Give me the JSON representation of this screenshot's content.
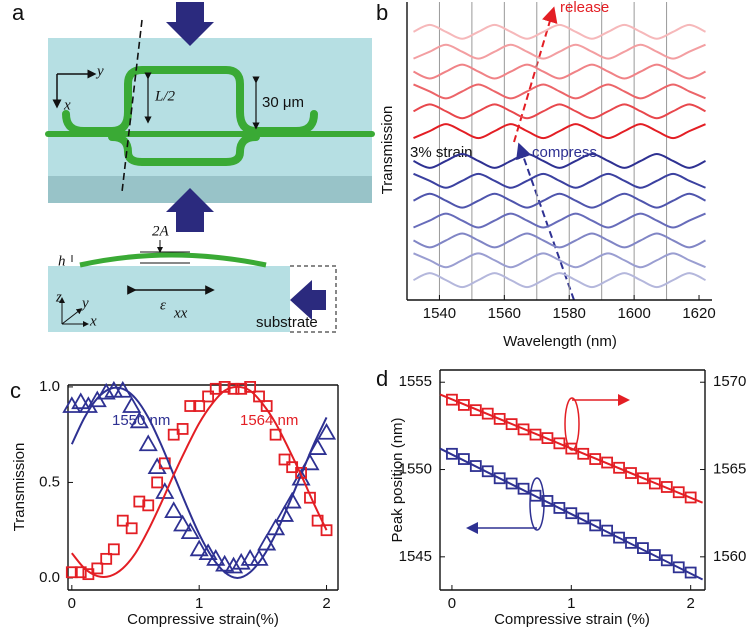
{
  "panel_labels": [
    "a",
    "b",
    "c",
    "d"
  ],
  "diagram": {
    "texts": [
      "y",
      "x",
      "L/2",
      "30 μm",
      "2A",
      "h",
      "ε",
      "xx",
      "z",
      "y",
      "x",
      "substrate"
    ]
  },
  "chart_data": [
    {
      "type": "line",
      "xlabel": "Wavelength (nm)",
      "ylabel": "Transmission",
      "xlim": [
        1530,
        1624
      ],
      "ylim": [
        0,
        15
      ],
      "xticks": [
        1540,
        1560,
        1580,
        1600,
        1620
      ],
      "xgrid": [
        1540,
        1550,
        1560,
        1570,
        1580,
        1590,
        1600,
        1610
      ],
      "annotations": [
        {
          "text": "release",
          "color": "#e31e24"
        },
        {
          "text": "compress",
          "color": "#2e3192"
        },
        {
          "text": "3% strain",
          "color": "#111111"
        }
      ],
      "x": [
        1532,
        1537,
        1542,
        1547,
        1552,
        1557,
        1562,
        1567,
        1572,
        1577,
        1582,
        1587,
        1592,
        1597,
        1602,
        1607,
        1612,
        1617,
        1622
      ],
      "series": [
        {
          "color": "#b4b7dc",
          "values": [
            1,
            1.35,
            1,
            0.65,
            1,
            1.35,
            1,
            0.65,
            1,
            1.35,
            1,
            0.65,
            1,
            1.35,
            1,
            0.65,
            1,
            1.35,
            1
          ]
        },
        {
          "color": "#9a9ed1",
          "values": [
            2.35,
            2,
            1.65,
            2,
            2.35,
            2,
            1.65,
            2,
            2.35,
            2,
            1.65,
            2,
            2.35,
            2,
            1.65,
            2,
            2.35,
            2,
            1.65
          ]
        },
        {
          "color": "#8085c5",
          "values": [
            3,
            2.65,
            3,
            3.35,
            3,
            2.65,
            3,
            3.35,
            3,
            2.65,
            3,
            3.35,
            3,
            2.65,
            3,
            3.35,
            3,
            2.65,
            3
          ]
        },
        {
          "color": "#676cba",
          "values": [
            3.65,
            4,
            4.35,
            4,
            3.65,
            4,
            4.35,
            4,
            3.65,
            4,
            4.35,
            4,
            3.65,
            4,
            4.35,
            4,
            3.65,
            4,
            4.35
          ]
        },
        {
          "color": "#4f55ad",
          "values": [
            5,
            5.35,
            5,
            4.65,
            5,
            5.35,
            5,
            4.65,
            5,
            5.35,
            5,
            4.65,
            5,
            5.35,
            5,
            4.65,
            5,
            5.35,
            5
          ]
        },
        {
          "color": "#3b41a0",
          "values": [
            6.35,
            6,
            5.65,
            6,
            6.35,
            6,
            5.65,
            6,
            6.35,
            6,
            5.65,
            6,
            6.35,
            6,
            5.65,
            6,
            6.35,
            6,
            5.65
          ]
        },
        {
          "color": "#2e3192",
          "values": [
            7,
            6.65,
            7,
            7.35,
            7,
            6.65,
            7,
            7.35,
            7,
            6.65,
            7,
            7.35,
            7,
            6.65,
            7,
            7.35,
            7,
            6.65,
            7
          ]
        },
        {
          "color": "#e31e24",
          "values": [
            8.15,
            8.5,
            8.85,
            8.5,
            8.15,
            8.5,
            8.85,
            8.5,
            8.15,
            8.5,
            8.85,
            8.5,
            8.15,
            8.5,
            8.85,
            8.5,
            8.15,
            8.5,
            8.85
          ]
        },
        {
          "color": "#e8474c",
          "values": [
            9.5,
            9.85,
            9.5,
            9.15,
            9.5,
            9.85,
            9.5,
            9.15,
            9.5,
            9.85,
            9.5,
            9.15,
            9.5,
            9.85,
            9.5,
            9.15,
            9.5,
            9.85,
            9.5
          ]
        },
        {
          "color": "#ec6569",
          "values": [
            10.85,
            10.5,
            10.15,
            10.5,
            10.85,
            10.5,
            10.15,
            10.5,
            10.85,
            10.5,
            10.15,
            10.5,
            10.85,
            10.5,
            10.15,
            10.5,
            10.85,
            10.5,
            10.15
          ]
        },
        {
          "color": "#f08286",
          "values": [
            11.5,
            11.15,
            11.5,
            11.85,
            11.5,
            11.15,
            11.5,
            11.85,
            11.5,
            11.15,
            11.5,
            11.85,
            11.5,
            11.15,
            11.5,
            11.85,
            11.5,
            11.15,
            11.5
          ]
        },
        {
          "color": "#f39ea1",
          "values": [
            12.15,
            12.5,
            12.85,
            12.5,
            12.15,
            12.5,
            12.85,
            12.5,
            12.15,
            12.5,
            12.85,
            12.5,
            12.15,
            12.5,
            12.85,
            12.5,
            12.15,
            12.5,
            12.85
          ]
        },
        {
          "color": "#f6b8ba",
          "values": [
            13.5,
            13.85,
            13.5,
            13.15,
            13.5,
            13.85,
            13.5,
            13.15,
            13.5,
            13.85,
            13.5,
            13.15,
            13.5,
            13.85,
            13.5,
            13.15,
            13.5,
            13.85,
            13.5
          ]
        }
      ]
    },
    {
      "type": "scatter",
      "xlabel": "Compressive strain(%)",
      "ylabel": "Transmission",
      "xlim": [
        -0.03,
        2.09
      ],
      "ylim": [
        -0.063,
        1.01
      ],
      "xticks": [
        0,
        1,
        2
      ],
      "yticks": [
        {
          "value": 0,
          "label": "0.0"
        },
        0.5,
        {
          "value": 1,
          "label": "1.0"
        }
      ],
      "annotations": [
        {
          "text": "1550 nm",
          "color": "#2e3192"
        },
        {
          "text": "1564 nm",
          "color": "#e31e24"
        }
      ],
      "series": [
        {
          "color": "#2e3192",
          "marker": "triangle",
          "x": [
            0,
            0.07,
            0.13,
            0.2,
            0.27,
            0.33,
            0.4,
            0.47,
            0.53,
            0.6,
            0.67,
            0.73,
            0.8,
            0.87,
            0.93,
            1,
            1.07,
            1.13,
            1.2,
            1.27,
            1.33,
            1.4,
            1.47,
            1.53,
            1.6,
            1.67,
            1.73,
            1.8,
            1.87,
            1.93,
            2
          ],
          "values": [
            0.9,
            0.92,
            0.9,
            0.93,
            0.97,
            0.98,
            0.98,
            0.9,
            0.82,
            0.7,
            0.58,
            0.45,
            0.35,
            0.28,
            0.24,
            0.15,
            0.13,
            0.1,
            0.07,
            0.06,
            0.08,
            0.1,
            0.1,
            0.18,
            0.26,
            0.33,
            0.4,
            0.52,
            0.6,
            0.68,
            0.76
          ]
        },
        {
          "color": "#e31e24",
          "marker": "square",
          "x": [
            0,
            0.07,
            0.13,
            0.2,
            0.27,
            0.33,
            0.4,
            0.47,
            0.53,
            0.6,
            0.67,
            0.73,
            0.8,
            0.87,
            0.93,
            1,
            1.07,
            1.13,
            1.2,
            1.27,
            1.33,
            1.4,
            1.47,
            1.53,
            1.6,
            1.67,
            1.73,
            1.8,
            1.87,
            1.93,
            2
          ],
          "values": [
            0.03,
            0.03,
            0.02,
            0.05,
            0.1,
            0.15,
            0.3,
            0.26,
            0.4,
            0.38,
            0.5,
            0.6,
            0.75,
            0.78,
            0.9,
            0.9,
            0.95,
            0.99,
            1,
            0.99,
            0.99,
            1,
            0.95,
            0.9,
            0.75,
            0.62,
            0.58,
            0.55,
            0.42,
            0.3,
            0.25
          ]
        },
        {
          "color": "#2e3192",
          "marker": "line",
          "x": [
            0,
            0.1,
            0.2,
            0.3,
            0.4,
            0.5,
            0.6,
            0.7,
            0.8,
            0.9,
            1,
            1.1,
            1.2,
            1.3,
            1.4,
            1.5,
            1.6,
            1.7,
            1.8,
            1.9,
            2
          ],
          "values": [
            0.7,
            0.84,
            0.94,
            0.99,
            0.99,
            0.94,
            0.84,
            0.7,
            0.54,
            0.38,
            0.23,
            0.11,
            0.03,
            0,
            0.03,
            0.11,
            0.23,
            0.38,
            0.54,
            0.7,
            0.84
          ]
        },
        {
          "color": "#e31e24",
          "marker": "line",
          "x": [
            0,
            0.1,
            0.2,
            0.3,
            0.4,
            0.5,
            0.6,
            0.7,
            0.8,
            0.9,
            1,
            1.1,
            1.2,
            1.3,
            1.4,
            1.5,
            1.6,
            1.7,
            1.8,
            1.9,
            2
          ],
          "values": [
            0.13,
            0.05,
            0.01,
            0.01,
            0.05,
            0.13,
            0.25,
            0.39,
            0.54,
            0.68,
            0.81,
            0.91,
            0.98,
            1,
            0.98,
            0.91,
            0.81,
            0.68,
            0.54,
            0.39,
            0.25
          ]
        }
      ]
    },
    {
      "type": "scatter",
      "xlabel": "Compressive strain (%)",
      "ylabel": "Peak position (nm)",
      "xlim": [
        -0.1,
        2.12
      ],
      "ylim": [
        1543.1,
        1555.7
      ],
      "y2lim": [
        1558.1,
        1570.7
      ],
      "xticks": [
        0,
        1,
        2
      ],
      "yticks": [
        1545,
        1550,
        1555
      ],
      "y2ticks": [
        1560,
        1565,
        1570
      ],
      "series": [
        {
          "color": "#2e3192",
          "marker": "square",
          "x": [
            0,
            0.1,
            0.2,
            0.3,
            0.4,
            0.5,
            0.6,
            0.7,
            0.8,
            0.9,
            1,
            1.1,
            1.2,
            1.3,
            1.4,
            1.5,
            1.6,
            1.7,
            1.8,
            1.9,
            2
          ],
          "values": [
            1550.9,
            1550.6,
            1550.2,
            1549.9,
            1549.5,
            1549.2,
            1548.9,
            1548.5,
            1548.2,
            1547.8,
            1547.5,
            1547.2,
            1546.8,
            1546.5,
            1546.1,
            1545.8,
            1545.5,
            1545.1,
            1544.8,
            1544.4,
            1544.1
          ]
        },
        {
          "color": "#e31e24",
          "marker": "square",
          "axis": "y2",
          "x": [
            0,
            0.1,
            0.2,
            0.3,
            0.4,
            0.5,
            0.6,
            0.7,
            0.8,
            0.9,
            1,
            1.1,
            1.2,
            1.3,
            1.4,
            1.5,
            1.6,
            1.7,
            1.8,
            1.9,
            2
          ],
          "values": [
            1569,
            1568.7,
            1568.4,
            1568.2,
            1567.9,
            1567.6,
            1567.3,
            1567,
            1566.8,
            1566.5,
            1566.2,
            1565.9,
            1565.6,
            1565.4,
            1565.1,
            1564.8,
            1564.5,
            1564.2,
            1564,
            1563.7,
            1563.4
          ]
        },
        {
          "color": "#2e3192",
          "marker": "line",
          "x": [
            -0.1,
            2.1
          ],
          "values": [
            1551.2,
            1543.7
          ]
        },
        {
          "color": "#e31e24",
          "marker": "line",
          "axis": "y2",
          "x": [
            -0.1,
            2.1
          ],
          "values": [
            1569.3,
            1563.1
          ]
        }
      ]
    }
  ]
}
